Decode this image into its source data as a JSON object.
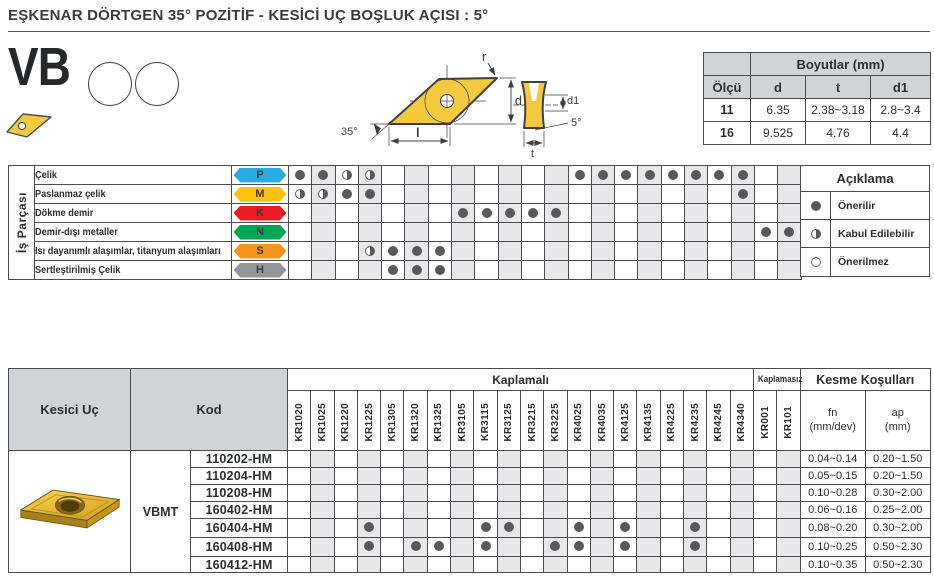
{
  "title": "EŞKENAR DÖRTGEN 35° POZİTİF - KESİCİ UÇ BOŞLUK AÇISI : 5°",
  "profile": {
    "code": "VB"
  },
  "drawing": {
    "labels": {
      "r": "r",
      "d": "d",
      "l": "l",
      "tip_angle": "35°",
      "d1": "d1",
      "clearance_angle": "5°",
      "t": "t"
    }
  },
  "dimensions_table": {
    "title": "Boyutlar (mm)",
    "col_headers": [
      "Ölçü",
      "d",
      "t",
      "d1"
    ],
    "rows": [
      [
        "11",
        "6.35",
        "2.38~3.18",
        "2.8~3.4"
      ],
      [
        "16",
        "9.525",
        "4.76",
        "4.4"
      ]
    ]
  },
  "grades": [
    "KR1020",
    "KR1025",
    "KR1220",
    "KR1225",
    "KR1305",
    "KR1320",
    "KR1325",
    "KR3105",
    "KR3115",
    "KR3125",
    "KR3215",
    "KR3225",
    "KR4025",
    "KR4035",
    "KR4125",
    "KR4135",
    "KR4225",
    "KR4235",
    "KR4245",
    "KR4340",
    "KR001",
    "KR101"
  ],
  "workpiece_matrix": {
    "side_label": "İş Parçası",
    "mark_key": {
      "F": "full",
      "H": "half",
      ".": "none"
    },
    "rows": [
      {
        "name": "Çelik",
        "letter": "P",
        "color": "#29abe2",
        "marks": "FFHH........FFFFFFFF.."
      },
      {
        "name": "Paslanmaz çelik",
        "letter": "M",
        "color": "#ffc20e",
        "marks": "HHFF...............F.."
      },
      {
        "name": "Dökme demir",
        "letter": "K",
        "color": "#ed1c24",
        "marks": ".......FFFFF.........."
      },
      {
        "name": "Demir-dışı metaller",
        "letter": "N",
        "color": "#00a651",
        "marks": "....................FF"
      },
      {
        "name": "Isı dayanımlı alaşımlar, titanyum alaşımları",
        "letter": "S",
        "color": "#f7941d",
        "marks": "...HFFF..............."
      },
      {
        "name": "Sertleştirilmiş Çelik",
        "letter": "H",
        "color": "#939598",
        "marks": "....FFF..............."
      }
    ]
  },
  "legend": {
    "title": "Açıklama",
    "items": [
      {
        "symbol": "full",
        "label": "Önerilir"
      },
      {
        "symbol": "half",
        "label": "Kabul Edilebilir"
      },
      {
        "symbol": "empty",
        "label": "Önerilmez"
      }
    ]
  },
  "inserts_table": {
    "col_insert": "Kesici Uç",
    "col_code": "Kod",
    "group_coated": "Kaplamalı",
    "group_uncoated": "Kaplamasız",
    "group_cutting": "Kesme Koşulları",
    "fn_header": "fn",
    "fn_unit": "(mm/dev)",
    "ap_header": "ap",
    "ap_unit": "(mm)",
    "series": "VBMT",
    "rows": [
      {
        "code": "110202-HM",
        "marks": "......................",
        "fn": "0.04~0.14",
        "ap": "0.20~1.50"
      },
      {
        "code": "110204-HM",
        "marks": "......................",
        "fn": "0.05~0.15",
        "ap": "0.20~1.50"
      },
      {
        "code": "110208-HM",
        "marks": "......................",
        "fn": "0.10~0.28",
        "ap": "0.30~2.00"
      },
      {
        "code": "160402-HM",
        "marks": "......................",
        "fn": "0.06~0.16",
        "ap": "0.25~2.00"
      },
      {
        "code": "160404-HM",
        "marks": "...F....FF..F.F..F....",
        "fn": "0.08~0.20",
        "ap": "0.30~2.00"
      },
      {
        "code": "160408-HM",
        "marks": "...F.FF.F..FF.F..F....",
        "fn": "0.10~0.25",
        "ap": "0.50~2.30"
      },
      {
        "code": "160412-HM",
        "marks": "......................",
        "fn": "0.10~0.35",
        "ap": "0.50~2.30"
      }
    ]
  },
  "colors": {
    "header_bg": "#d2d3d6",
    "stripe_bg": "#e8e8ea",
    "dot": "#58595b",
    "border": "#4b4c4e",
    "insert_yellow": "#f3ca3e",
    "class_p": "#29abe2",
    "class_m": "#ffc20e",
    "class_k": "#ed1c24",
    "class_n": "#00a651",
    "class_s": "#f7941d",
    "class_h": "#939598"
  }
}
